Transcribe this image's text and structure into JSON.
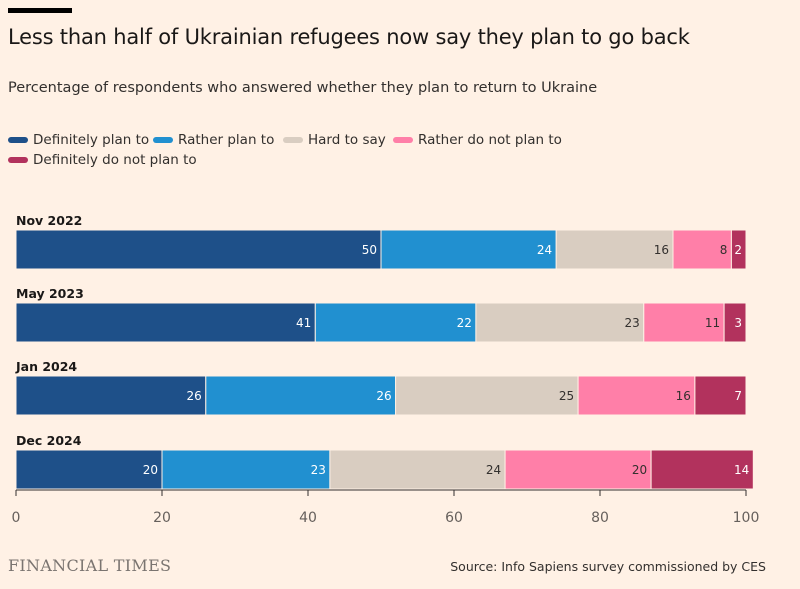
{
  "header": {
    "title": "Less than half of Ukrainian refugees now say they plan to go back",
    "subtitle": "Percentage of respondents who answered whether they plan to return to Ukraine"
  },
  "footer": {
    "brand": "FINANCIAL TIMES",
    "source": "Source: Info Sapiens survey commissioned by CES"
  },
  "chart_data": {
    "type": "bar",
    "orientation": "horizontal",
    "stacked": true,
    "categories": [
      "Nov 2022",
      "May 2023",
      "Jan 2024",
      "Dec 2024"
    ],
    "series": [
      {
        "name": "Definitely plan to",
        "color": "#1e5089",
        "label_color": "#ffffff",
        "values": [
          50,
          41,
          26,
          20
        ]
      },
      {
        "name": "Rather plan to",
        "color": "#2190d0",
        "label_color": "#ffffff",
        "values": [
          24,
          22,
          26,
          23
        ]
      },
      {
        "name": "Hard to say",
        "color": "#d9cdc1",
        "label_color": "#33302e",
        "values": [
          16,
          23,
          25,
          24
        ]
      },
      {
        "name": "Rather do not plan to",
        "color": "#ff7fa8",
        "label_color": "#33302e",
        "values": [
          8,
          11,
          16,
          20
        ]
      },
      {
        "name": "Definitely do not plan to",
        "color": "#b2325d",
        "label_color": "#ffffff",
        "values": [
          2,
          3,
          7,
          14
        ]
      }
    ],
    "xlim": [
      0,
      100
    ],
    "xticks": [
      0,
      20,
      40,
      60,
      80,
      100
    ],
    "legend_position": "top",
    "grid": false
  }
}
